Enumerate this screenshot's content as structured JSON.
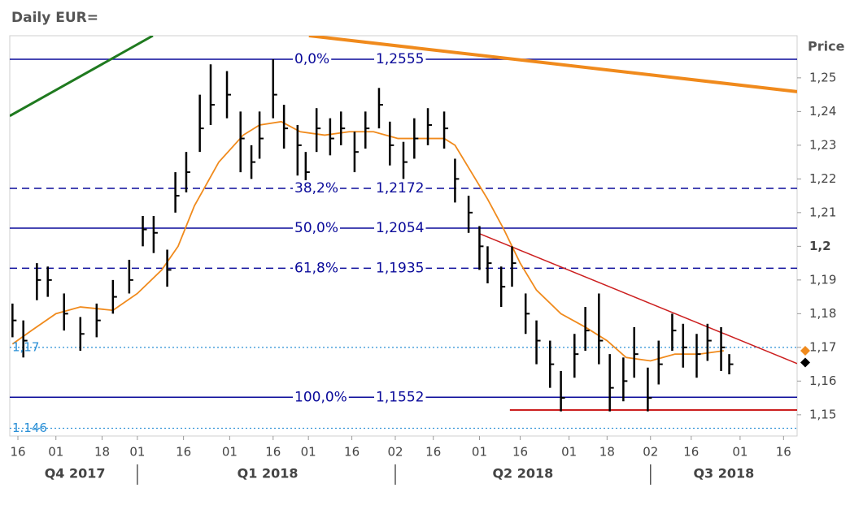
{
  "chart_data": {
    "type": "ohlc",
    "title": "Daily EUR=",
    "y_axis_title": "Price",
    "xlim": [
      0,
      290
    ],
    "ylim": [
      1.1437,
      1.2625
    ],
    "yticks": [
      {
        "value": 1.15,
        "label": "1,15"
      },
      {
        "value": 1.16,
        "label": "1,16"
      },
      {
        "value": 1.17,
        "label": "1,17"
      },
      {
        "value": 1.18,
        "label": "1,18"
      },
      {
        "value": 1.19,
        "label": "1,19"
      },
      {
        "value": 1.2,
        "label": "1,2",
        "bold": true
      },
      {
        "value": 1.21,
        "label": "1,21"
      },
      {
        "value": 1.22,
        "label": "1,22"
      },
      {
        "value": 1.23,
        "label": "1,23"
      },
      {
        "value": 1.24,
        "label": "1,24"
      },
      {
        "value": 1.25,
        "label": "1,25"
      }
    ],
    "xticks": [
      {
        "value": 3,
        "label": "16"
      },
      {
        "value": 17,
        "label": "01"
      },
      {
        "value": 34,
        "label": "18"
      },
      {
        "value": 47,
        "label": "01"
      },
      {
        "value": 64,
        "label": "16"
      },
      {
        "value": 81,
        "label": "01"
      },
      {
        "value": 97,
        "label": "16"
      },
      {
        "value": 110,
        "label": "01"
      },
      {
        "value": 126,
        "label": "16"
      },
      {
        "value": 142,
        "label": "02"
      },
      {
        "value": 156,
        "label": "16"
      },
      {
        "value": 173,
        "label": "01"
      },
      {
        "value": 188,
        "label": "16"
      },
      {
        "value": 206,
        "label": "01"
      },
      {
        "value": 220,
        "label": "18"
      },
      {
        "value": 236,
        "label": "02"
      },
      {
        "value": 251,
        "label": "16"
      },
      {
        "value": 269,
        "label": "01"
      },
      {
        "value": 285,
        "label": "16"
      }
    ],
    "quarters": [
      {
        "value": 24,
        "label": "Q4 2017"
      },
      {
        "value": 95,
        "label": "Q1 2018"
      },
      {
        "value": 189,
        "label": "Q2 2018"
      },
      {
        "value": 263,
        "label": "Q3 2018"
      }
    ],
    "quarter_separators": [
      47,
      142,
      236
    ],
    "color": "#000000",
    "x": [
      1,
      5,
      10,
      14,
      20,
      26,
      32,
      38,
      44,
      49,
      53,
      58,
      61,
      65,
      70,
      74,
      80,
      85,
      89,
      92,
      97,
      101,
      106,
      109,
      113,
      118,
      122,
      127,
      131,
      136,
      140,
      145,
      149,
      154,
      160,
      164,
      169,
      173,
      176,
      181,
      185,
      190,
      194,
      199,
      203,
      208,
      212,
      217,
      221,
      226,
      230,
      235,
      239,
      244,
      248,
      253,
      257,
      262,
      265
    ],
    "high": [
      1.183,
      1.178,
      1.195,
      1.194,
      1.186,
      1.179,
      1.183,
      1.19,
      1.196,
      1.209,
      1.209,
      1.199,
      1.222,
      1.228,
      1.245,
      1.254,
      1.252,
      1.24,
      1.23,
      1.24,
      1.2555,
      1.242,
      1.236,
      1.228,
      1.241,
      1.238,
      1.24,
      1.234,
      1.24,
      1.247,
      1.237,
      1.231,
      1.238,
      1.241,
      1.24,
      1.226,
      1.215,
      1.206,
      1.2,
      1.194,
      1.2,
      1.186,
      1.178,
      1.172,
      1.163,
      1.174,
      1.182,
      1.186,
      1.168,
      1.167,
      1.176,
      1.164,
      1.172,
      1.18,
      1.177,
      1.174,
      1.177,
      1.176,
      1.168
    ],
    "low": [
      1.173,
      1.167,
      1.184,
      1.185,
      1.175,
      1.169,
      1.173,
      1.18,
      1.186,
      1.2,
      1.198,
      1.188,
      1.21,
      1.216,
      1.228,
      1.236,
      1.238,
      1.222,
      1.22,
      1.226,
      1.238,
      1.229,
      1.221,
      1.216,
      1.228,
      1.227,
      1.23,
      1.222,
      1.229,
      1.235,
      1.224,
      1.22,
      1.226,
      1.23,
      1.229,
      1.213,
      1.204,
      1.193,
      1.189,
      1.182,
      1.188,
      1.174,
      1.165,
      1.158,
      1.151,
      1.161,
      1.169,
      1.165,
      1.151,
      1.154,
      1.161,
      1.151,
      1.159,
      1.169,
      1.164,
      1.161,
      1.166,
      1.163,
      1.162
    ],
    "close": [
      1.178,
      1.172,
      1.19,
      1.19,
      1.18,
      1.174,
      1.178,
      1.185,
      1.19,
      1.205,
      1.204,
      1.193,
      1.215,
      1.222,
      1.235,
      1.242,
      1.245,
      1.232,
      1.225,
      1.232,
      1.245,
      1.235,
      1.23,
      1.222,
      1.235,
      1.232,
      1.235,
      1.228,
      1.235,
      1.242,
      1.23,
      1.225,
      1.232,
      1.236,
      1.235,
      1.22,
      1.21,
      1.2,
      1.195,
      1.188,
      1.195,
      1.18,
      1.172,
      1.165,
      1.155,
      1.168,
      1.175,
      1.172,
      1.158,
      1.16,
      1.168,
      1.155,
      1.165,
      1.175,
      1.17,
      1.168,
      1.172,
      1.17,
      1.165
    ],
    "moving_average": {
      "color": "#f08a1c",
      "x": [
        1,
        8,
        17,
        26,
        38,
        47,
        56,
        62,
        68,
        77,
        86,
        92,
        100,
        107,
        116,
        125,
        134,
        143,
        152,
        160,
        164,
        170,
        176,
        182,
        188,
        194,
        203,
        212,
        220,
        227,
        236,
        245,
        254,
        263
      ],
      "values": [
        1.171,
        1.175,
        1.18,
        1.182,
        1.181,
        1.186,
        1.193,
        1.2,
        1.212,
        1.225,
        1.233,
        1.236,
        1.237,
        1.234,
        1.233,
        1.234,
        1.234,
        1.232,
        1.232,
        1.232,
        1.23,
        1.222,
        1.214,
        1.205,
        1.195,
        1.187,
        1.18,
        1.176,
        1.172,
        1.167,
        1.166,
        1.168,
        1.168,
        1.169
      ]
    },
    "fib_levels": [
      {
        "label": "0,0%",
        "value_label": "1,2555",
        "value": 1.2555,
        "style": "solid"
      },
      {
        "label": "38,2%",
        "value_label": "1,2172",
        "value": 1.2172,
        "style": "dashed"
      },
      {
        "label": "50,0%",
        "value_label": "1,2054",
        "value": 1.2054,
        "style": "solid"
      },
      {
        "label": "61,8%",
        "value_label": "1,1935",
        "value": 1.1935,
        "style": "dashed"
      },
      {
        "label": "100,0%",
        "value_label": "1,1552",
        "value": 1.1552,
        "style": "solid"
      }
    ],
    "fib_color": "#0a0a9a",
    "reference_lines": [
      {
        "value": 1.17,
        "label": "1,17"
      },
      {
        "value": 1.146,
        "label": "1.146"
      }
    ],
    "reference_color": "#2a8fd6",
    "trend_lines": [
      {
        "color": "#1f7a1f",
        "width": 3,
        "x": [
          0,
          52.7
        ],
        "values": [
          1.2387,
          1.2625
        ]
      },
      {
        "color": "#f08a1c",
        "width": 4,
        "x": [
          110.2,
          290
        ],
        "values": [
          1.2625,
          1.2459
        ]
      },
      {
        "color": "#cc1f1f",
        "width": 1.5,
        "x": [
          173.2,
          290
        ],
        "values": [
          1.2037,
          1.1652
        ]
      },
      {
        "color": "#cc1f1f",
        "width": 2,
        "x": [
          184.2,
          290
        ],
        "values": [
          1.1514,
          1.1514
        ]
      }
    ],
    "last_markers": [
      {
        "value": 1.169,
        "color": "#f08a1c"
      },
      {
        "value": 1.1655,
        "color": "#000000"
      }
    ]
  }
}
